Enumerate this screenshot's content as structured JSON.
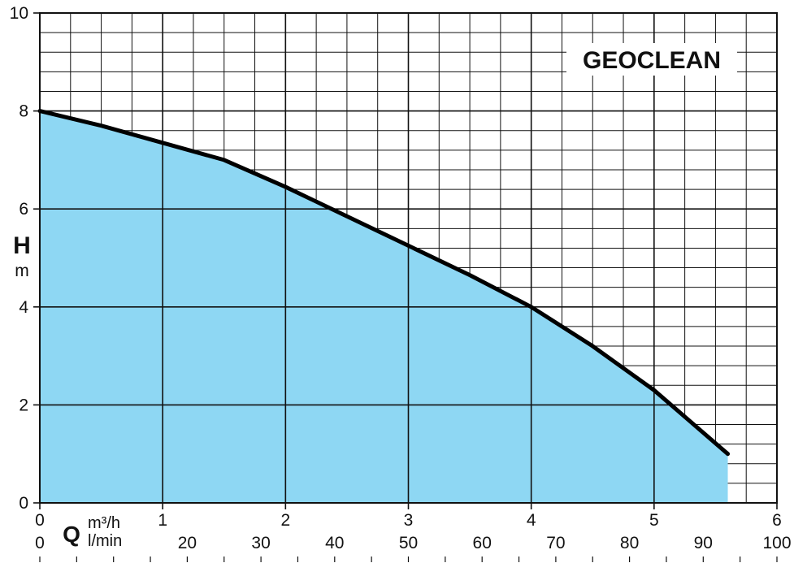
{
  "chart_data": {
    "type": "area",
    "title": "",
    "series": [
      {
        "name": "GEOCLEAN",
        "x": [
          0,
          0.5,
          1.0,
          1.5,
          2.0,
          2.5,
          3.0,
          3.5,
          4.0,
          4.5,
          5.0,
          5.6
        ],
        "y": [
          8.0,
          7.7,
          7.35,
          7.0,
          6.45,
          5.85,
          5.25,
          4.65,
          4.0,
          3.2,
          2.3,
          1.0
        ],
        "color": "#000000",
        "fill": "#8ed7f3"
      }
    ],
    "xlim": [
      0,
      6
    ],
    "ylim": [
      0,
      10
    ],
    "x_ticks": [
      0,
      1,
      2,
      3,
      4,
      5,
      6
    ],
    "y_ticks": [
      0,
      2,
      4,
      6,
      8,
      10
    ],
    "x2_ticks": [
      0,
      20,
      30,
      40,
      50,
      60,
      70,
      80,
      90,
      100
    ],
    "y_label": {
      "symbol": "H",
      "unit": "m"
    },
    "x_label": {
      "symbol": "Q",
      "unit_primary": "m³/h",
      "unit_secondary": "l/min"
    },
    "x2_conversion_factor": 16.6667,
    "grid": true,
    "legend_position": "top-right"
  }
}
